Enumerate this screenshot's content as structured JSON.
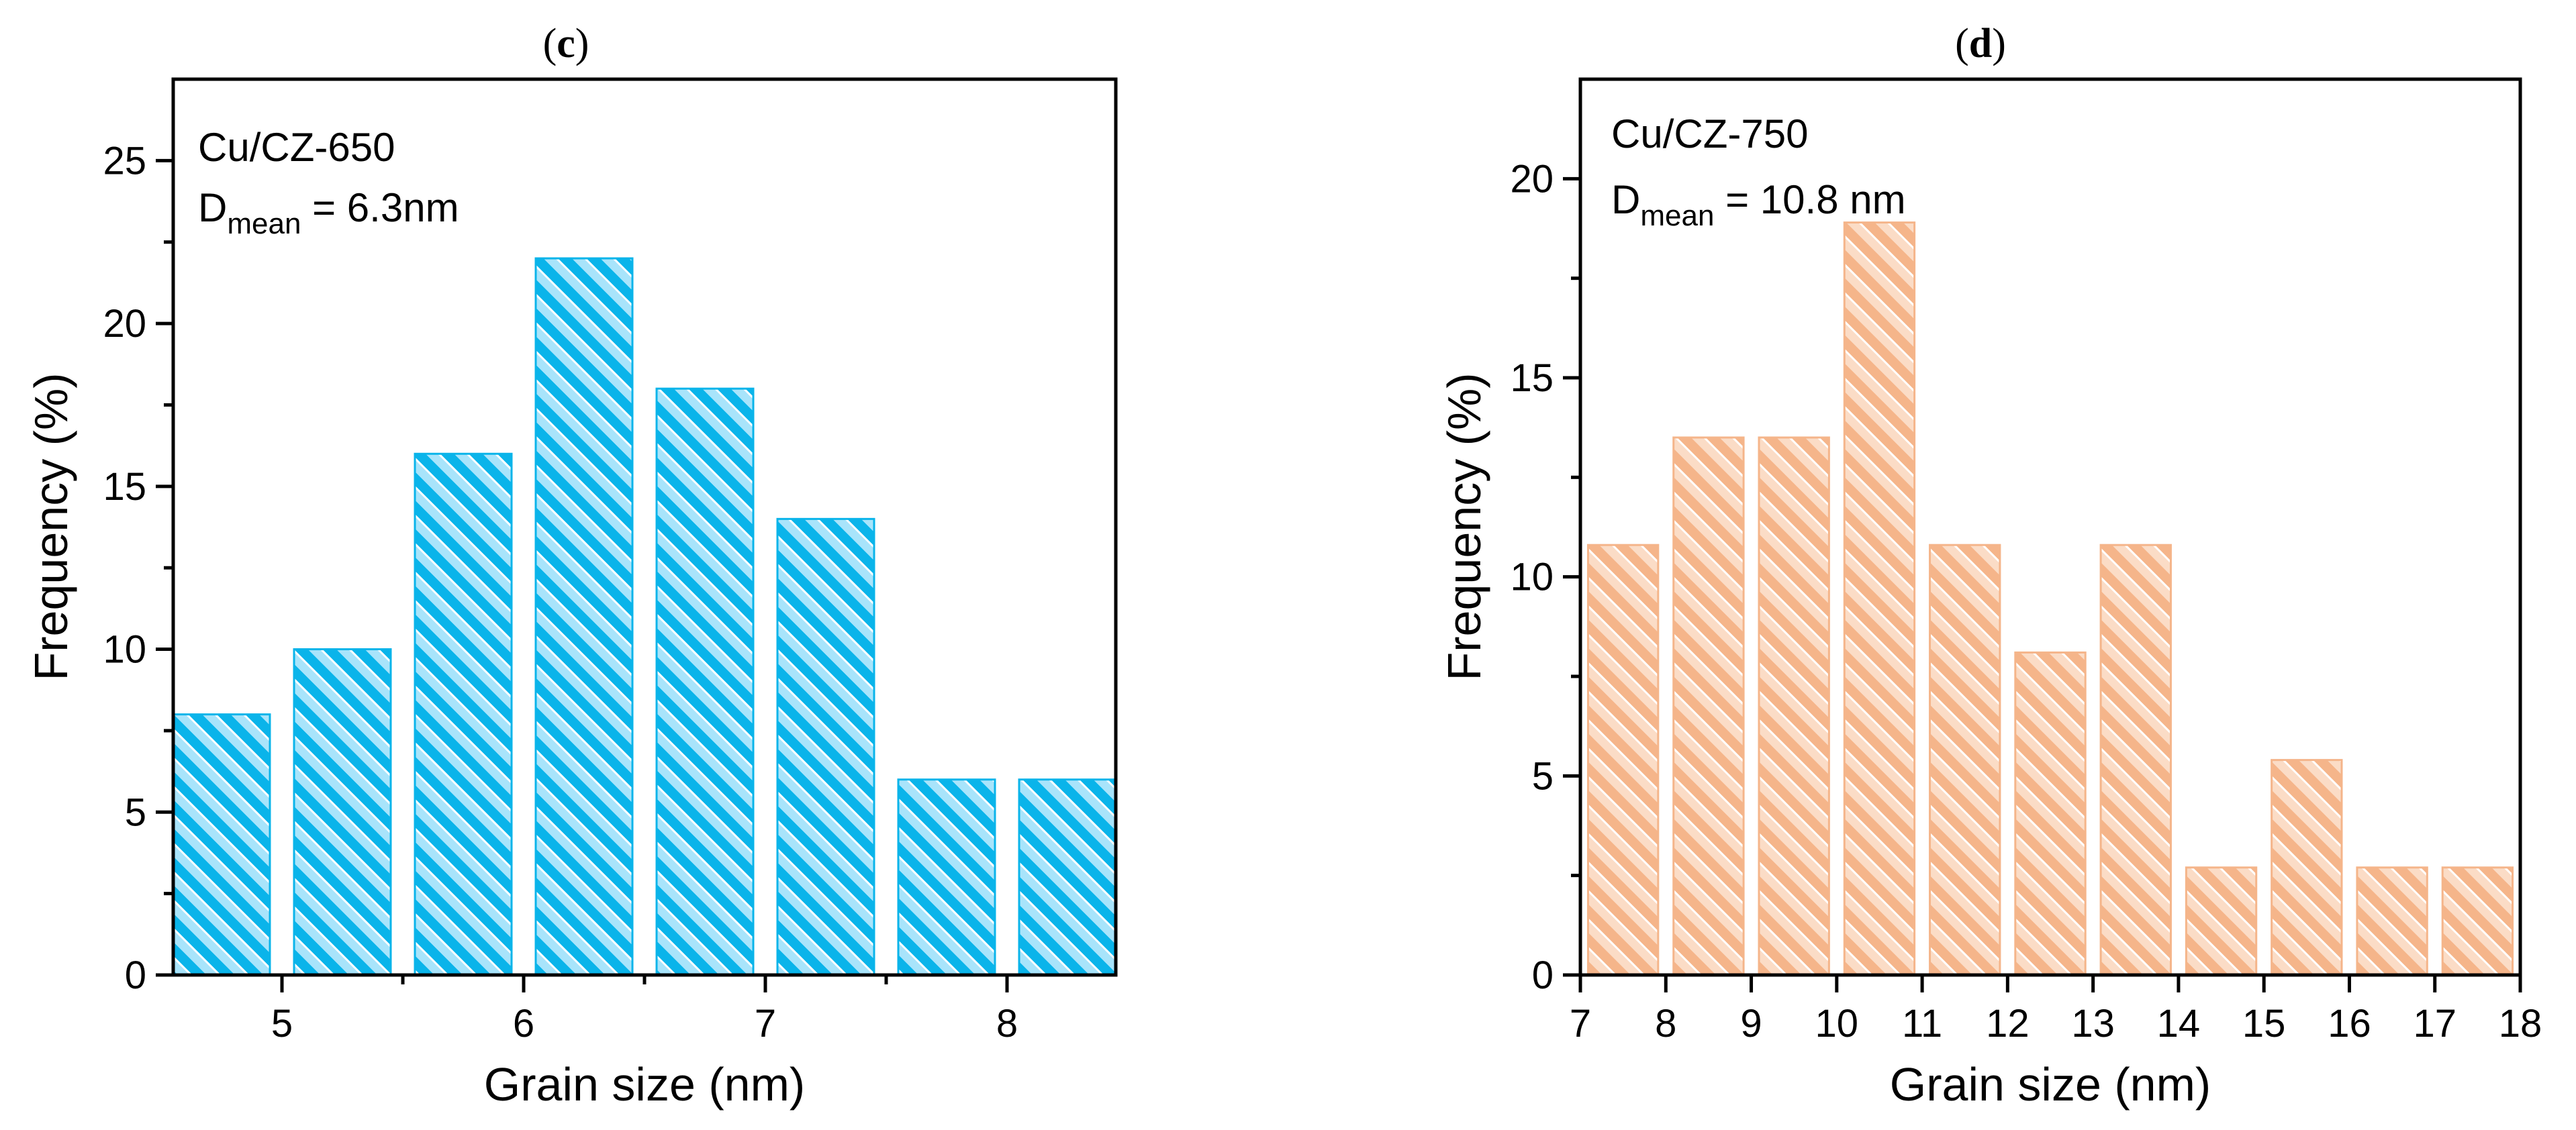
{
  "chart_data": [
    {
      "type": "bar",
      "panel_label_open": "(",
      "panel_label_letter": "c",
      "panel_label_close": ")",
      "xlabel": "Grain size (nm)",
      "ylabel": "Frequency (%)",
      "annotation_line1": "Cu/CZ-650",
      "annotation_D": "D",
      "annotation_sub": "mean",
      "annotation_rest": " = 6.3nm",
      "xlim": [
        4.55,
        8.45
      ],
      "ylim": [
        0,
        27.5
      ],
      "x_ticks": [
        5,
        6,
        7,
        8
      ],
      "x_tick_labels": [
        "5",
        "6",
        "7",
        "8"
      ],
      "y_ticks": [
        0,
        5,
        10,
        15,
        20,
        25
      ],
      "y_tick_labels": [
        "0",
        "5",
        "10",
        "15",
        "20",
        "25"
      ],
      "bar_width": 0.4,
      "x": [
        4.75,
        5.25,
        5.75,
        6.25,
        6.75,
        7.25,
        7.75,
        8.25
      ],
      "values": [
        8,
        10,
        16,
        22,
        18,
        14,
        6,
        6
      ],
      "color": "#0ab4ea",
      "color_light": "#a8e4fb"
    },
    {
      "type": "bar",
      "panel_label_open": "(",
      "panel_label_letter": "d",
      "panel_label_close": ")",
      "xlabel": "Grain size (nm)",
      "ylabel": "Frequency (%)",
      "annotation_line1": "Cu/CZ-750",
      "annotation_D": "D",
      "annotation_sub": "mean",
      "annotation_rest": " = 10.8 nm",
      "xlim": [
        7,
        18
      ],
      "ylim": [
        0,
        22.5
      ],
      "x_ticks": [
        7,
        8,
        9,
        10,
        11,
        12,
        13,
        14,
        15,
        16,
        17,
        18
      ],
      "x_tick_labels": [
        "7",
        "8",
        "9",
        "10",
        "11",
        "12",
        "13",
        "14",
        "15",
        "16",
        "17",
        "18"
      ],
      "y_ticks": [
        0,
        5,
        10,
        15,
        20
      ],
      "y_tick_labels": [
        "0",
        "5",
        "10",
        "15",
        "20"
      ],
      "bar_width": 0.82,
      "x": [
        7.5,
        8.5,
        9.5,
        10.5,
        11.5,
        12.5,
        13.5,
        14.5,
        15.5,
        16.5,
        17.5
      ],
      "values": [
        10.8,
        13.5,
        13.5,
        18.9,
        10.8,
        8.1,
        10.8,
        2.7,
        5.4,
        2.7,
        2.7
      ],
      "color": "#f5b58a",
      "color_light": "#fbdcc6"
    }
  ]
}
